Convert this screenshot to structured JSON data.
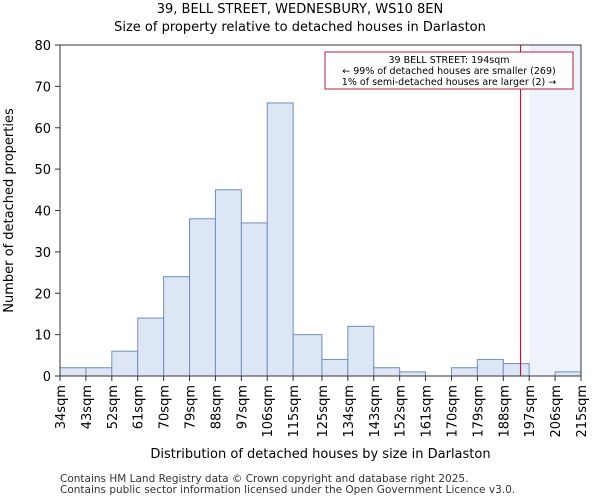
{
  "header": {
    "title": "39, BELL STREET, WEDNESBURY, WS10 8EN",
    "subtitle": "Size of property relative to detached houses in Darlaston"
  },
  "footer": {
    "line1": "Contains HM Land Registry data © Crown copyright and database right 2025.",
    "line2": "Contains public sector information licensed under the Open Government Licence v3.0."
  },
  "chart_data": {
    "type": "bar",
    "xlabel": "Distribution of detached houses by size in Darlaston",
    "ylabel": "Number of detached properties",
    "ylim": [
      0,
      80
    ],
    "yticks": [
      0,
      10,
      20,
      30,
      40,
      50,
      60,
      70,
      80
    ],
    "bin_edges": [
      34,
      43,
      52,
      61,
      70,
      79,
      88,
      97,
      106,
      115,
      125,
      134,
      143,
      152,
      161,
      170,
      179,
      188,
      197,
      206,
      215
    ],
    "tick_labels": [
      "34sqm",
      "43sqm",
      "52sqm",
      "61sqm",
      "70sqm",
      "79sqm",
      "88sqm",
      "97sqm",
      "106sqm",
      "115sqm",
      "125sqm",
      "134sqm",
      "143sqm",
      "152sqm",
      "161sqm",
      "170sqm",
      "179sqm",
      "188sqm",
      "197sqm",
      "206sqm",
      "215sqm"
    ],
    "values": [
      2,
      2,
      6,
      14,
      24,
      38,
      45,
      37,
      66,
      10,
      4,
      12,
      2,
      1,
      0,
      2,
      4,
      3,
      0,
      1
    ],
    "bar_color": "#dce6f4",
    "bar_edge_color": "#6e8fc0",
    "marker": {
      "x": 194,
      "color": "#b0203a",
      "annotation": [
        "39 BELL STREET: 194sqm",
        "← 99% of detached houses are smaller (269)",
        "1% of semi-detached houses are larger (2) →"
      ]
    },
    "shaded_region_start": 197,
    "shaded_color": "#eef3fb",
    "grid": false
  }
}
